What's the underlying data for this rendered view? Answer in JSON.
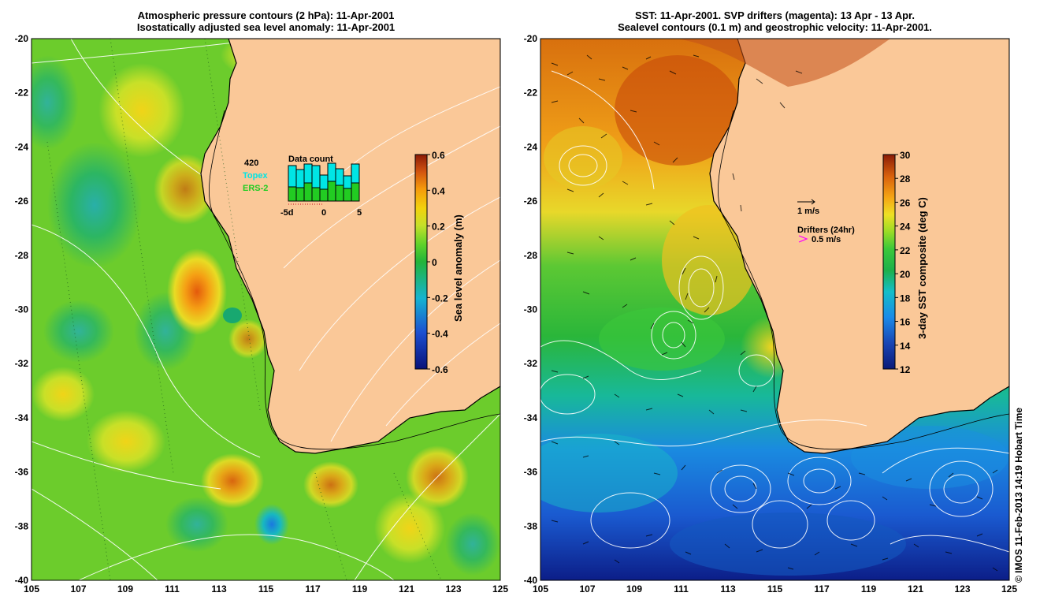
{
  "left_panel": {
    "title_line1": "Atmospheric pressure contours (2 hPa): 11-Apr-2001",
    "title_line2": "Isostatically adjusted sea level anomaly: 11-Apr-2001",
    "colorbar": {
      "label": "Sea level anomaly (m)",
      "ticks": [
        "0.6",
        "0.4",
        "0.2",
        "0",
        "-0.2",
        "-0.4",
        "-0.6"
      ],
      "range": [
        -0.6,
        0.6
      ]
    },
    "data_count": {
      "count": "420",
      "title": "Data count",
      "topex_label": "Topex",
      "ers_label": "ERS-2",
      "x_ticks": [
        "-5d",
        "0",
        "5"
      ],
      "topex_color": "#00e5e5",
      "ers_color": "#22cc22"
    }
  },
  "right_panel": {
    "title_line1": "SST: 11-Apr-2001. SVP drifters (magenta): 13 Apr - 13 Apr.",
    "title_line2": "Sealevel contours (0.1 m) and geostrophic velocity: 11-Apr-2001.",
    "colorbar": {
      "label": "3-day SST composite (deg C)",
      "ticks": [
        "30",
        "28",
        "26",
        "24",
        "22",
        "20",
        "18",
        "16",
        "14",
        "12"
      ],
      "range": [
        12,
        30
      ]
    },
    "velocity_legend": "1 m/s",
    "drifter_legend_title": "Drifters (24hr)",
    "drifter_legend_speed": "0.5 m/s",
    "drifter_color": "#ff00ff"
  },
  "axes": {
    "lat_labels": [
      "-20",
      "-22",
      "-24",
      "-26",
      "-28",
      "-30",
      "-32",
      "-34",
      "-36",
      "-38",
      "-40"
    ],
    "lon_labels": [
      "105",
      "107",
      "109",
      "111",
      "113",
      "115",
      "117",
      "119",
      "121",
      "123",
      "125"
    ],
    "lat_range": [
      -40,
      -20
    ],
    "lon_range": [
      105,
      125
    ]
  },
  "colors": {
    "land": "#fac898",
    "coast": "#000000",
    "contour": "#ffffff"
  },
  "credit": "© IMOS 11-Feb-2013 14:19 Hobart Time"
}
